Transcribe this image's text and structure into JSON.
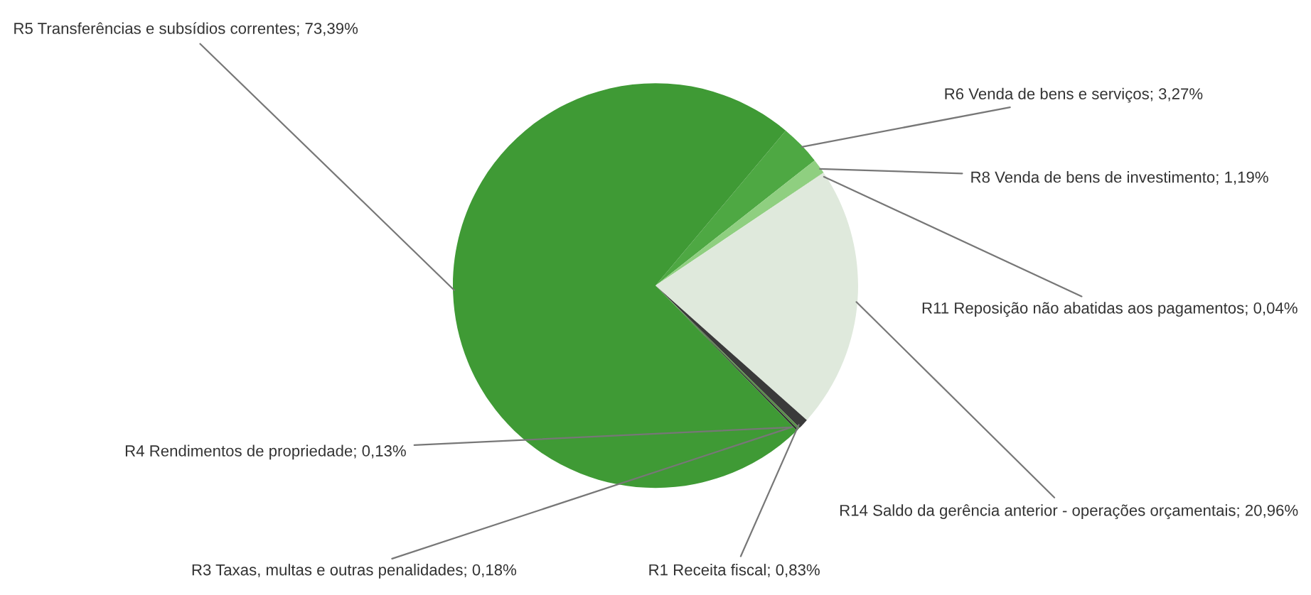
{
  "chart_data": {
    "type": "pie",
    "categories": [
      "R6 Venda de bens e serviços",
      "R8 Venda de bens de investimento",
      "R11 Reposição não abatidas aos pagamentos",
      "R14 Saldo da gerência anterior - operações orçamentais",
      "R1 Receita fiscal",
      "R3 Taxas, multas e outras penalidades",
      "R4 Rendimentos de propriedade",
      "R5 Transferências e subsídios correntes"
    ],
    "values": [
      3.27,
      1.19,
      0.04,
      20.96,
      0.83,
      0.18,
      0.13,
      73.39
    ],
    "value_labels": [
      "3,27%",
      "1,19%",
      "0,04%",
      "20,96%",
      "0,83%",
      "0,18%",
      "0,13%",
      "73,39%"
    ],
    "colors": [
      "#4ea843",
      "#8fcf80",
      "#c9dcc0",
      "#dfe9dc",
      "#3a3a3a",
      "#5a8f4a",
      "#2e2e2e",
      "#3f9a35"
    ],
    "legend": false
  }
}
